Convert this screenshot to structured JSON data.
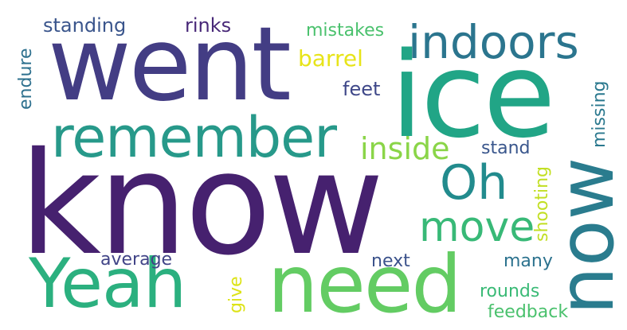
{
  "words": {
    "know": "know",
    "went": "went",
    "ice": "ice",
    "yeah": "Yeah",
    "need": "need",
    "remember": "remember",
    "now": "now",
    "indoors": "indoors",
    "oh": "Oh",
    "move": "move",
    "inside": "inside",
    "standing": "standing",
    "rinks": "rinks",
    "mistakes": "mistakes",
    "barrel": "barrel",
    "feet": "feet",
    "endure": "endure",
    "missing": "missing",
    "stand": "stand",
    "shooting": "shooting",
    "average": "average",
    "next": "next",
    "many": "many",
    "rounds": "rounds",
    "give": "give",
    "feedback": "feedback"
  },
  "colors": {
    "know": "#46216f",
    "went": "#433d84",
    "ice": "#21a586",
    "yeah": "#2bb07f",
    "need": "#63cc63",
    "remember": "#27998a",
    "now": "#2a7c8e",
    "indoors": "#2b758e",
    "oh": "#228b8d",
    "move": "#38b977",
    "inside": "#8ad548",
    "standing": "#3a558c",
    "rinks": "#482878",
    "mistakes": "#4ac16d",
    "barrel": "#e7e419",
    "feet": "#3f4889",
    "endure": "#2d708e",
    "missing": "#2a788e",
    "stand": "#39568c",
    "shooting": "#c2df23",
    "average": "#414487",
    "next": "#3b528b",
    "many": "#2c728e",
    "rounds": "#3aba76",
    "give": "#dde318",
    "feedback": "#4ac16d"
  }
}
